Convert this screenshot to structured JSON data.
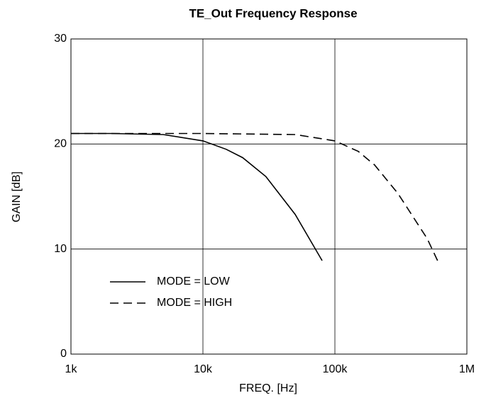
{
  "chart_data": {
    "type": "line",
    "title": "TE_Out Frequency Response",
    "xlabel": "FREQ. [Hz]",
    "ylabel": "GAIN [dB]",
    "xscale": "log",
    "xlim": [
      1000,
      1000000
    ],
    "xticks": [
      {
        "value": 1000,
        "label": "1k"
      },
      {
        "value": 10000,
        "label": "10k"
      },
      {
        "value": 100000,
        "label": "100k"
      },
      {
        "value": 1000000,
        "label": "1M"
      }
    ],
    "ylim": [
      0,
      30
    ],
    "yticks": [
      0,
      10,
      20,
      30
    ],
    "grid": true,
    "legend": "lower left",
    "series": [
      {
        "name": "MODE = LOW",
        "color": "#000000",
        "linestyle": "solid",
        "x": [
          1000,
          2000,
          5000,
          10000,
          15000,
          20000,
          30000,
          50000,
          80000
        ],
        "values": [
          21,
          21,
          20.9,
          20.3,
          19.5,
          18.7,
          16.9,
          13.3,
          8.9
        ]
      },
      {
        "name": "MODE = HIGH",
        "color": "#000000",
        "linestyle": "dashed",
        "x": [
          1000,
          10000,
          50000,
          100000,
          150000,
          200000,
          300000,
          500000,
          600000
        ],
        "values": [
          21,
          21,
          20.9,
          20.3,
          19.3,
          18,
          15.3,
          11,
          8.9
        ]
      }
    ]
  }
}
